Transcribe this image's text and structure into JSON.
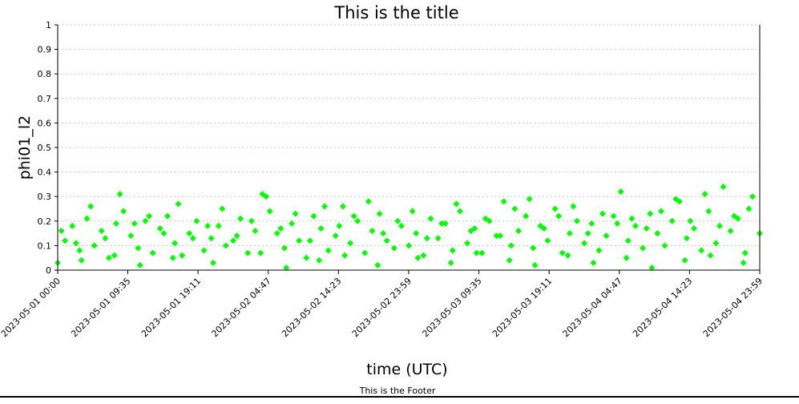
{
  "chart_data": {
    "type": "scatter",
    "title": "This is the title",
    "footer": "This is the Footer",
    "xlabel": "time (UTC)",
    "ylabel": "phi01_l2",
    "xlim": [
      "2023-05-01 00:00",
      "2023-05-04 23:59"
    ],
    "ylim": [
      0,
      1
    ],
    "x_tick_labels": [
      "2023-05-01 00:00",
      "2023-05-01 09:35",
      "2023-05-01 19:11",
      "2023-05-02 04:47",
      "2023-05-02 14:23",
      "2023-05-02 23:59",
      "2023-05-03 09:35",
      "2023-05-03 19:11",
      "2023-05-04 04:47",
      "2023-05-04 14:23",
      "2023-05-04 23:59"
    ],
    "y_tick_labels": [
      "0",
      "0.1",
      "0.2",
      "0.3",
      "0.4",
      "0.5",
      "0.6",
      "0.7",
      "0.8",
      "0.9",
      "1"
    ],
    "y_ticks": [
      0,
      0.1,
      0.2,
      0.3,
      0.4,
      0.5,
      0.6,
      0.7,
      0.8,
      0.9,
      1
    ],
    "grid": true,
    "marker": "diamond",
    "series": [
      {
        "color": "#00ff00",
        "x": [
          "2023-05-01 00:00",
          "2023-05-01 01:00",
          "2023-05-01 02:00",
          "2023-05-01 03:00",
          "2023-05-01 04:00",
          "2023-05-01 05:00",
          "2023-05-01 06:00",
          "2023-05-01 07:00",
          "2023-05-01 08:00",
          "2023-05-01 09:00",
          "2023-05-01 10:00",
          "2023-05-01 11:00",
          "2023-05-01 12:00",
          "2023-05-01 13:00",
          "2023-05-01 14:00",
          "2023-05-01 15:00",
          "2023-05-01 16:00",
          "2023-05-01 17:00",
          "2023-05-01 18:00",
          "2023-05-01 19:00",
          "2023-05-01 20:00",
          "2023-05-01 21:00",
          "2023-05-01 22:00",
          "2023-05-01 23:00",
          "2023-05-02 00:00",
          "2023-05-02 01:00",
          "2023-05-02 02:00",
          "2023-05-02 03:00",
          "2023-05-02 04:00",
          "2023-05-02 05:00",
          "2023-05-02 06:00",
          "2023-05-02 07:00",
          "2023-05-02 08:00",
          "2023-05-02 09:00",
          "2023-05-02 10:00",
          "2023-05-02 11:00",
          "2023-05-02 12:00",
          "2023-05-02 13:00",
          "2023-05-02 14:00",
          "2023-05-02 15:00",
          "2023-05-02 16:00",
          "2023-05-02 17:00",
          "2023-05-02 18:00",
          "2023-05-02 19:00",
          "2023-05-02 20:00",
          "2023-05-02 21:00",
          "2023-05-02 22:00",
          "2023-05-02 23:00",
          "2023-05-03 00:00",
          "2023-05-03 01:00",
          "2023-05-03 02:00",
          "2023-05-03 03:00",
          "2023-05-03 04:00",
          "2023-05-03 05:00",
          "2023-05-03 06:00",
          "2023-05-03 07:00",
          "2023-05-03 08:00",
          "2023-05-03 09:00",
          "2023-05-03 10:00",
          "2023-05-03 11:00",
          "2023-05-03 12:00",
          "2023-05-03 13:00",
          "2023-05-03 14:00",
          "2023-05-03 15:00",
          "2023-05-03 16:00",
          "2023-05-03 17:00",
          "2023-05-03 18:00",
          "2023-05-03 19:00",
          "2023-05-03 20:00",
          "2023-05-03 21:00",
          "2023-05-03 22:00",
          "2023-05-03 23:00",
          "2023-05-04 00:00",
          "2023-05-04 01:00",
          "2023-05-04 02:00",
          "2023-05-04 03:00",
          "2023-05-04 04:00",
          "2023-05-04 05:00",
          "2023-05-04 06:00",
          "2023-05-04 07:00",
          "2023-05-04 08:00",
          "2023-05-04 09:00",
          "2023-05-04 10:00",
          "2023-05-04 11:00",
          "2023-05-04 12:00",
          "2023-05-04 13:00",
          "2023-05-04 14:00",
          "2023-05-04 15:00",
          "2023-05-04 16:00",
          "2023-05-04 17:00",
          "2023-05-04 18:00",
          "2023-05-04 19:00",
          "2023-05-04 20:00",
          "2023-05-04 21:00",
          "2023-05-04 22:00",
          "2023-05-04 23:00",
          "2023-05-04 23:59",
          "2023-05-01 00:30",
          "2023-05-01 02:30",
          "2023-05-01 04:30",
          "2023-05-01 06:30",
          "2023-05-01 08:30",
          "2023-05-01 10:30",
          "2023-05-01 12:30",
          "2023-05-01 14:30",
          "2023-05-01 16:30",
          "2023-05-01 18:30",
          "2023-05-01 20:30",
          "2023-05-01 22:30",
          "2023-05-02 00:30",
          "2023-05-02 02:30",
          "2023-05-02 04:30",
          "2023-05-02 06:30",
          "2023-05-02 08:30",
          "2023-05-02 10:30",
          "2023-05-02 12:30",
          "2023-05-02 14:30",
          "2023-05-02 16:30",
          "2023-05-02 18:30",
          "2023-05-02 20:30",
          "2023-05-02 22:30",
          "2023-05-03 00:30",
          "2023-05-03 02:30",
          "2023-05-03 04:30",
          "2023-05-03 06:30",
          "2023-05-03 08:30",
          "2023-05-03 10:30",
          "2023-05-03 12:30",
          "2023-05-03 14:30",
          "2023-05-03 16:30",
          "2023-05-03 18:30",
          "2023-05-03 20:30",
          "2023-05-03 22:30",
          "2023-05-04 00:30",
          "2023-05-04 02:30",
          "2023-05-04 04:30",
          "2023-05-04 06:30",
          "2023-05-04 08:30",
          "2023-05-04 10:30",
          "2023-05-04 12:30",
          "2023-05-04 14:30",
          "2023-05-04 16:30",
          "2023-05-04 18:30",
          "2023-05-04 20:30",
          "2023-05-04 22:30",
          "2023-05-01 03:15",
          "2023-05-01 07:45",
          "2023-05-01 11:15",
          "2023-05-01 15:45",
          "2023-05-01 21:15",
          "2023-05-02 03:45",
          "2023-05-02 07:15",
          "2023-05-02 11:45",
          "2023-05-02 15:15",
          "2023-05-02 19:45",
          "2023-05-03 01:15",
          "2023-05-03 05:45",
          "2023-05-03 09:15",
          "2023-05-03 13:45",
          "2023-05-03 17:15",
          "2023-05-03 21:45",
          "2023-05-04 01:15",
          "2023-05-04 05:45",
          "2023-05-04 09:15",
          "2023-05-04 13:45",
          "2023-05-04 17:15",
          "2023-05-04 21:45"
        ],
        "y": [
          0.03,
          0.12,
          0.18,
          0.08,
          0.21,
          0.1,
          0.16,
          0.05,
          0.19,
          0.24,
          0.14,
          0.09,
          0.2,
          0.07,
          0.17,
          0.22,
          0.11,
          0.06,
          0.15,
          0.2,
          0.08,
          0.13,
          0.18,
          0.1,
          0.12,
          0.21,
          0.07,
          0.16,
          0.31,
          0.24,
          0.15,
          0.09,
          0.19,
          0.12,
          0.05,
          0.22,
          0.17,
          0.08,
          0.14,
          0.26,
          0.11,
          0.2,
          0.07,
          0.16,
          0.23,
          0.12,
          0.09,
          0.18,
          0.1,
          0.15,
          0.06,
          0.21,
          0.13,
          0.19,
          0.08,
          0.24,
          0.11,
          0.17,
          0.07,
          0.2,
          0.14,
          0.28,
          0.1,
          0.16,
          0.22,
          0.09,
          0.18,
          0.12,
          0.25,
          0.07,
          0.15,
          0.2,
          0.11,
          0.19,
          0.08,
          0.14,
          0.22,
          0.32,
          0.12,
          0.18,
          0.09,
          0.23,
          0.15,
          0.1,
          0.2,
          0.28,
          0.13,
          0.17,
          0.08,
          0.24,
          0.11,
          0.34,
          0.16,
          0.21,
          0.07,
          0.3,
          0.15,
          0.16,
          0.11,
          0.26,
          0.13,
          0.31,
          0.19,
          0.22,
          0.15,
          0.27,
          0.13,
          0.18,
          0.25,
          0.14,
          0.2,
          0.3,
          0.17,
          0.23,
          0.12,
          0.26,
          0.18,
          0.22,
          0.28,
          0.15,
          0.2,
          0.24,
          0.13,
          0.19,
          0.27,
          0.16,
          0.21,
          0.14,
          0.25,
          0.29,
          0.17,
          0.22,
          0.26,
          0.15,
          0.23,
          0.19,
          0.21,
          0.17,
          0.24,
          0.29,
          0.2,
          0.31,
          0.18,
          0.22,
          0.25,
          0.04,
          0.06,
          0.02,
          0.05,
          0.03,
          0.07,
          0.01,
          0.04,
          0.06,
          0.02,
          0.05,
          0.03,
          0.07,
          0.04,
          0.02,
          0.06,
          0.03,
          0.05,
          0.01,
          0.04,
          0.06,
          0.03
        ]
      }
    ]
  }
}
